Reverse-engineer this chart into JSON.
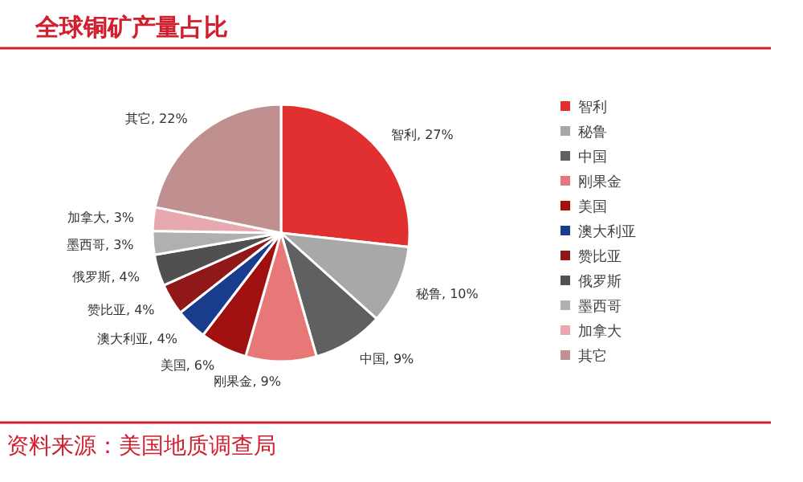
{
  "chart_data": {
    "type": "pie",
    "title": "全球铜矿产量占比",
    "categories": [
      "智利",
      "秘鲁",
      "中国",
      "刚果金",
      "美国",
      "澳大利亚",
      "赞比亚",
      "俄罗斯",
      "墨西哥",
      "加拿大",
      "其它"
    ],
    "values": [
      27,
      10,
      9,
      9,
      6,
      4,
      4,
      4,
      3,
      3,
      22
    ],
    "colors": [
      "#e03030",
      "#a8a8a8",
      "#606060",
      "#e87878",
      "#a01010",
      "#1a3c8c",
      "#901818",
      "#505050",
      "#b0b0b0",
      "#e8a8b0",
      "#c09090"
    ],
    "value_labels": [
      "智利, 27%",
      "秘鲁, 10%",
      "中国, 9%",
      "刚果金, 9%",
      "美国, 6%",
      "澳大利亚, 4%",
      "赞比亚, 4%",
      "俄罗斯, 4%",
      "墨西哥, 3%",
      "加拿大, 3%",
      "其它, 22%"
    ],
    "legend": "right",
    "annotations": [
      "资料来源：美国地质调查局"
    ]
  }
}
